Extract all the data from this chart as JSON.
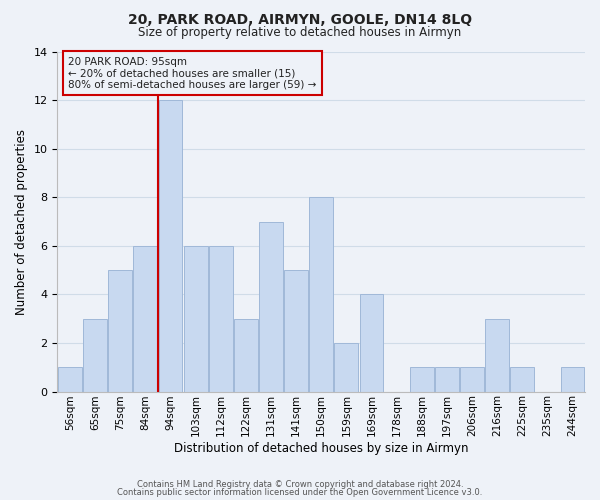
{
  "title_line1": "20, PARK ROAD, AIRMYN, GOOLE, DN14 8LQ",
  "title_line2": "Size of property relative to detached houses in Airmyn",
  "xlabel": "Distribution of detached houses by size in Airmyn",
  "ylabel": "Number of detached properties",
  "bar_labels": [
    "56sqm",
    "65sqm",
    "75sqm",
    "84sqm",
    "94sqm",
    "103sqm",
    "112sqm",
    "122sqm",
    "131sqm",
    "141sqm",
    "150sqm",
    "159sqm",
    "169sqm",
    "178sqm",
    "188sqm",
    "197sqm",
    "206sqm",
    "216sqm",
    "225sqm",
    "235sqm",
    "244sqm"
  ],
  "bar_values": [
    1,
    3,
    5,
    6,
    12,
    6,
    6,
    3,
    7,
    5,
    8,
    2,
    4,
    0,
    1,
    1,
    1,
    3,
    1,
    0,
    1
  ],
  "bar_color": "#c8d9f0",
  "bar_edge_color": "#a0b8d8",
  "highlight_index": 4,
  "highlight_line_color": "#cc0000",
  "annotation_line1": "20 PARK ROAD: 95sqm",
  "annotation_line2": "← 20% of detached houses are smaller (15)",
  "annotation_line3": "80% of semi-detached houses are larger (59) →",
  "annotation_box_edge": "#cc0000",
  "ylim": [
    0,
    14
  ],
  "yticks": [
    0,
    2,
    4,
    6,
    8,
    10,
    12,
    14
  ],
  "footer_line1": "Contains HM Land Registry data © Crown copyright and database right 2024.",
  "footer_line2": "Contains public sector information licensed under the Open Government Licence v3.0.",
  "grid_color": "#d0dce8",
  "background_color": "#eef2f8"
}
